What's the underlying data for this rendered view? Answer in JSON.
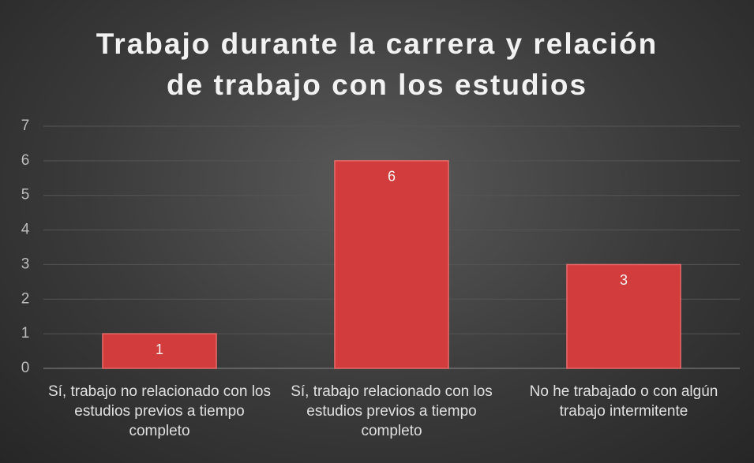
{
  "chart_data": {
    "type": "bar",
    "title": "Trabajo durante la carrera y relación de trabajo con los estudios",
    "categories": [
      "Sí, trabajo no relacionado con los estudios previos a tiempo completo",
      "Sí, trabajo relacionado con los estudios previos a tiempo completo",
      "No he trabajado o con algún trabajo intermitente"
    ],
    "values": [
      1,
      6,
      3
    ],
    "color": "#d23c3c",
    "ylim": [
      0,
      7
    ],
    "yticks": [
      0,
      1,
      2,
      3,
      4,
      5,
      6,
      7
    ],
    "grid": true
  }
}
